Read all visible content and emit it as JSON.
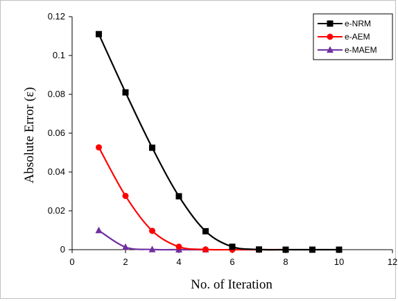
{
  "chart_data": {
    "type": "line",
    "title": "",
    "xlabel": "No. of Iteration",
    "ylabel": "Absolute Error (ε)",
    "xlim": [
      0,
      12
    ],
    "ylim": [
      0,
      0.12
    ],
    "x_ticks": [
      "0",
      "2",
      "4",
      "6",
      "8",
      "10",
      "12"
    ],
    "y_ticks": [
      "0",
      "0.02",
      "0.04",
      "0.06",
      "0.08",
      "0.1",
      "0.12"
    ],
    "grid": false,
    "legend_position": "top-right",
    "series": [
      {
        "name": "e-NRM",
        "color": "#000000",
        "marker": "square",
        "x": [
          1,
          2,
          3,
          4,
          5,
          6,
          7,
          8,
          9,
          10
        ],
        "values": [
          0.111,
          0.081,
          0.0525,
          0.0275,
          0.0095,
          0.0015,
          0.0001,
          0,
          0,
          0
        ]
      },
      {
        "name": "e-AEM",
        "color": "#ff0000",
        "marker": "circle",
        "x": [
          1,
          2,
          3,
          4,
          5,
          6,
          7,
          8
        ],
        "values": [
          0.0527,
          0.0277,
          0.0097,
          0.0015,
          0.0001,
          0,
          0,
          0
        ]
      },
      {
        "name": "e-MAEM",
        "color": "#7030a0",
        "marker": "triangle",
        "x": [
          1,
          2,
          3,
          4,
          5
        ],
        "values": [
          0.0099,
          0.0013,
          0.0001,
          0,
          0
        ]
      }
    ]
  }
}
